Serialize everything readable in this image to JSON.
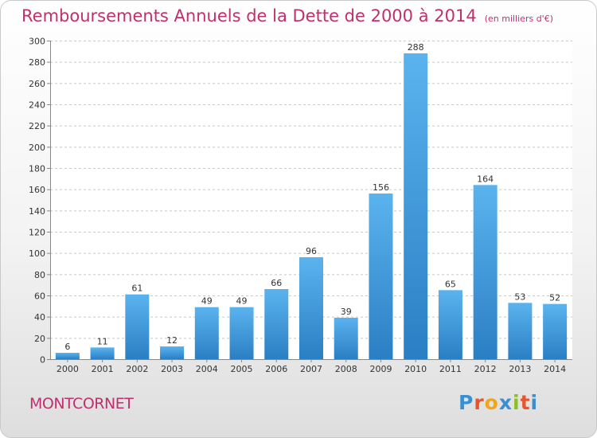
{
  "chart_data": {
    "type": "bar",
    "title": "Remboursements Annuels de la Dette de 2000 à 2014",
    "subtitle": "(en milliers d'€)",
    "categories": [
      "2000",
      "2001",
      "2002",
      "2003",
      "2004",
      "2005",
      "2006",
      "2007",
      "2008",
      "2009",
      "2010",
      "2011",
      "2012",
      "2013",
      "2014"
    ],
    "values": [
      6,
      11,
      61,
      12,
      49,
      49,
      66,
      96,
      39,
      156,
      288,
      65,
      164,
      53,
      52
    ],
    "ylim": [
      0,
      300
    ],
    "yticks": [
      0,
      20,
      40,
      60,
      80,
      100,
      120,
      140,
      160,
      180,
      200,
      220,
      240,
      260,
      280,
      300
    ],
    "grid": true,
    "bar_color": "#3d95d9",
    "text_color": "#c0306f"
  },
  "commune": "MONTCORNET",
  "logo": {
    "text": "Proxiti",
    "letters": [
      "P",
      "r",
      "o",
      "x",
      "i",
      "t",
      "i"
    ],
    "colors": [
      "#3a8fd0",
      "#e8552c",
      "#f2a51a",
      "#3a8fd0",
      "#8cbf26",
      "#e8552c",
      "#3a8fd0"
    ]
  }
}
